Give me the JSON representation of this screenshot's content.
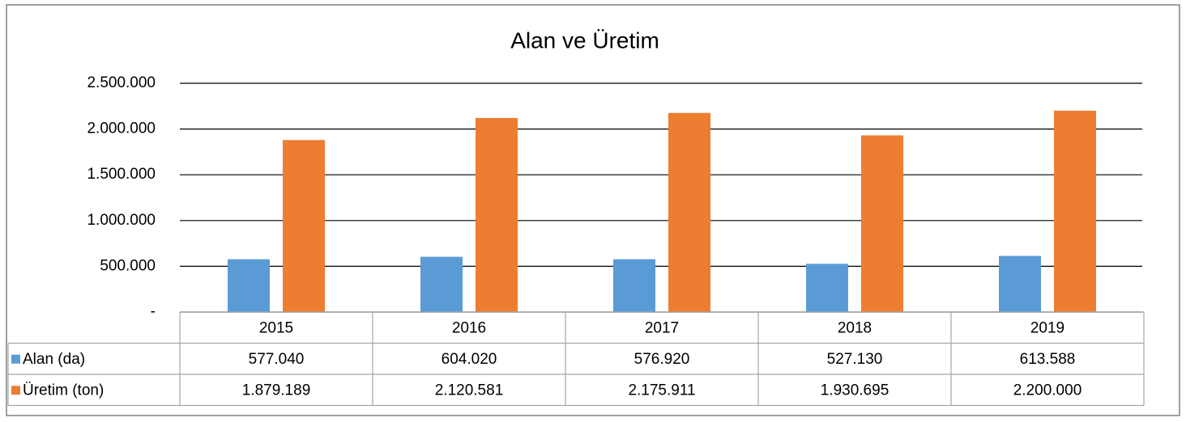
{
  "chart_data": {
    "type": "bar",
    "title": "Alan ve Üretim",
    "categories": [
      "2015",
      "2016",
      "2017",
      "2018",
      "2019"
    ],
    "series": [
      {
        "name": "Alan (da)",
        "color": "#5b9bd5",
        "values": [
          577040,
          604020,
          576920,
          527130,
          613588
        ],
        "value_labels": [
          "577.040",
          "604.020",
          "576.920",
          "527.130",
          "613.588"
        ]
      },
      {
        "name": "Üretim (ton)",
        "color": "#ed7d31",
        "values": [
          1879189,
          2120581,
          2175911,
          1930695,
          2200000
        ],
        "value_labels": [
          "1.879.189",
          "2.120.581",
          "2.175.911",
          "1.930.695",
          "2.200.000"
        ]
      }
    ],
    "ylim": [
      0,
      2500000
    ],
    "yticks": [
      {
        "value": 0,
        "label": "-"
      },
      {
        "value": 500000,
        "label": "500.000"
      },
      {
        "value": 1000000,
        "label": "1.000.000"
      },
      {
        "value": 1500000,
        "label": "1.500.000"
      },
      {
        "value": 2000000,
        "label": "2.000.000"
      },
      {
        "value": 2500000,
        "label": "2.500.000"
      }
    ],
    "grid": true,
    "data_table": true
  }
}
